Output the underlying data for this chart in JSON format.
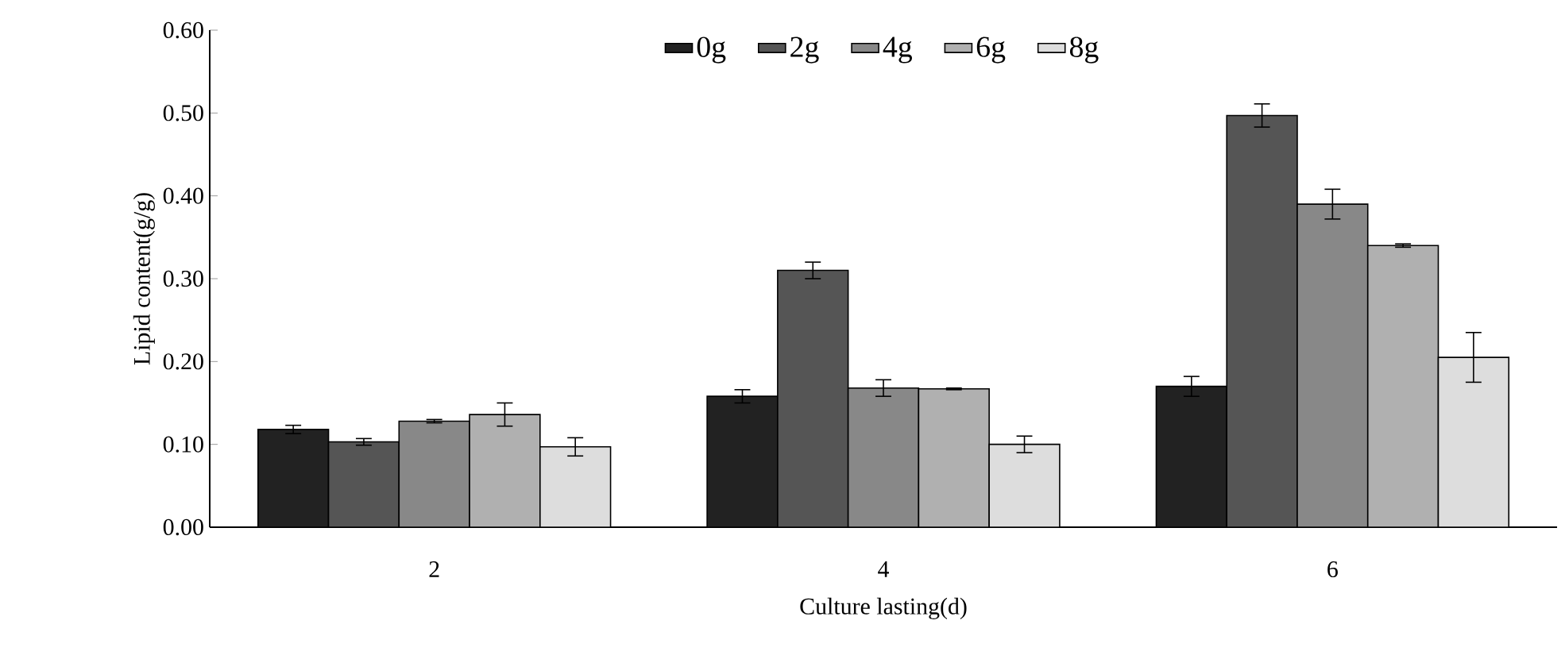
{
  "chart_data": {
    "type": "bar",
    "xlabel": "Culture lasting(d)",
    "ylabel": "Lipid content(g/g)",
    "categories": [
      "2",
      "4",
      "6"
    ],
    "series": [
      {
        "name": "0g",
        "color": "#222222",
        "values": [
          0.118,
          0.158,
          0.17
        ],
        "errors": [
          0.005,
          0.008,
          0.012
        ]
      },
      {
        "name": "2g",
        "color": "#555555",
        "values": [
          0.103,
          0.31,
          0.497
        ],
        "errors": [
          0.004,
          0.01,
          0.014
        ]
      },
      {
        "name": "4g",
        "color": "#888888",
        "values": [
          0.128,
          0.168,
          0.39
        ],
        "errors": [
          0.002,
          0.01,
          0.018
        ]
      },
      {
        "name": "6g",
        "color": "#b0b0b0",
        "values": [
          0.136,
          0.167,
          0.34
        ],
        "errors": [
          0.014,
          0.001,
          0.002
        ]
      },
      {
        "name": "8g",
        "color": "#dddddd",
        "values": [
          0.097,
          0.1,
          0.205
        ],
        "errors": [
          0.011,
          0.01,
          0.03
        ]
      }
    ],
    "ylim": [
      0,
      0.6
    ],
    "yticks": [
      {
        "value": 0,
        "label": "0.00"
      },
      {
        "value": 0.1,
        "label": "0.10"
      },
      {
        "value": 0.2,
        "label": "0.20"
      },
      {
        "value": 0.3,
        "label": "0.30"
      },
      {
        "value": 0.4,
        "label": "0.40"
      },
      {
        "value": 0.5,
        "label": "0.50"
      },
      {
        "value": 0.6,
        "label": "0.60"
      }
    ],
    "grid": false,
    "legend": "top"
  }
}
